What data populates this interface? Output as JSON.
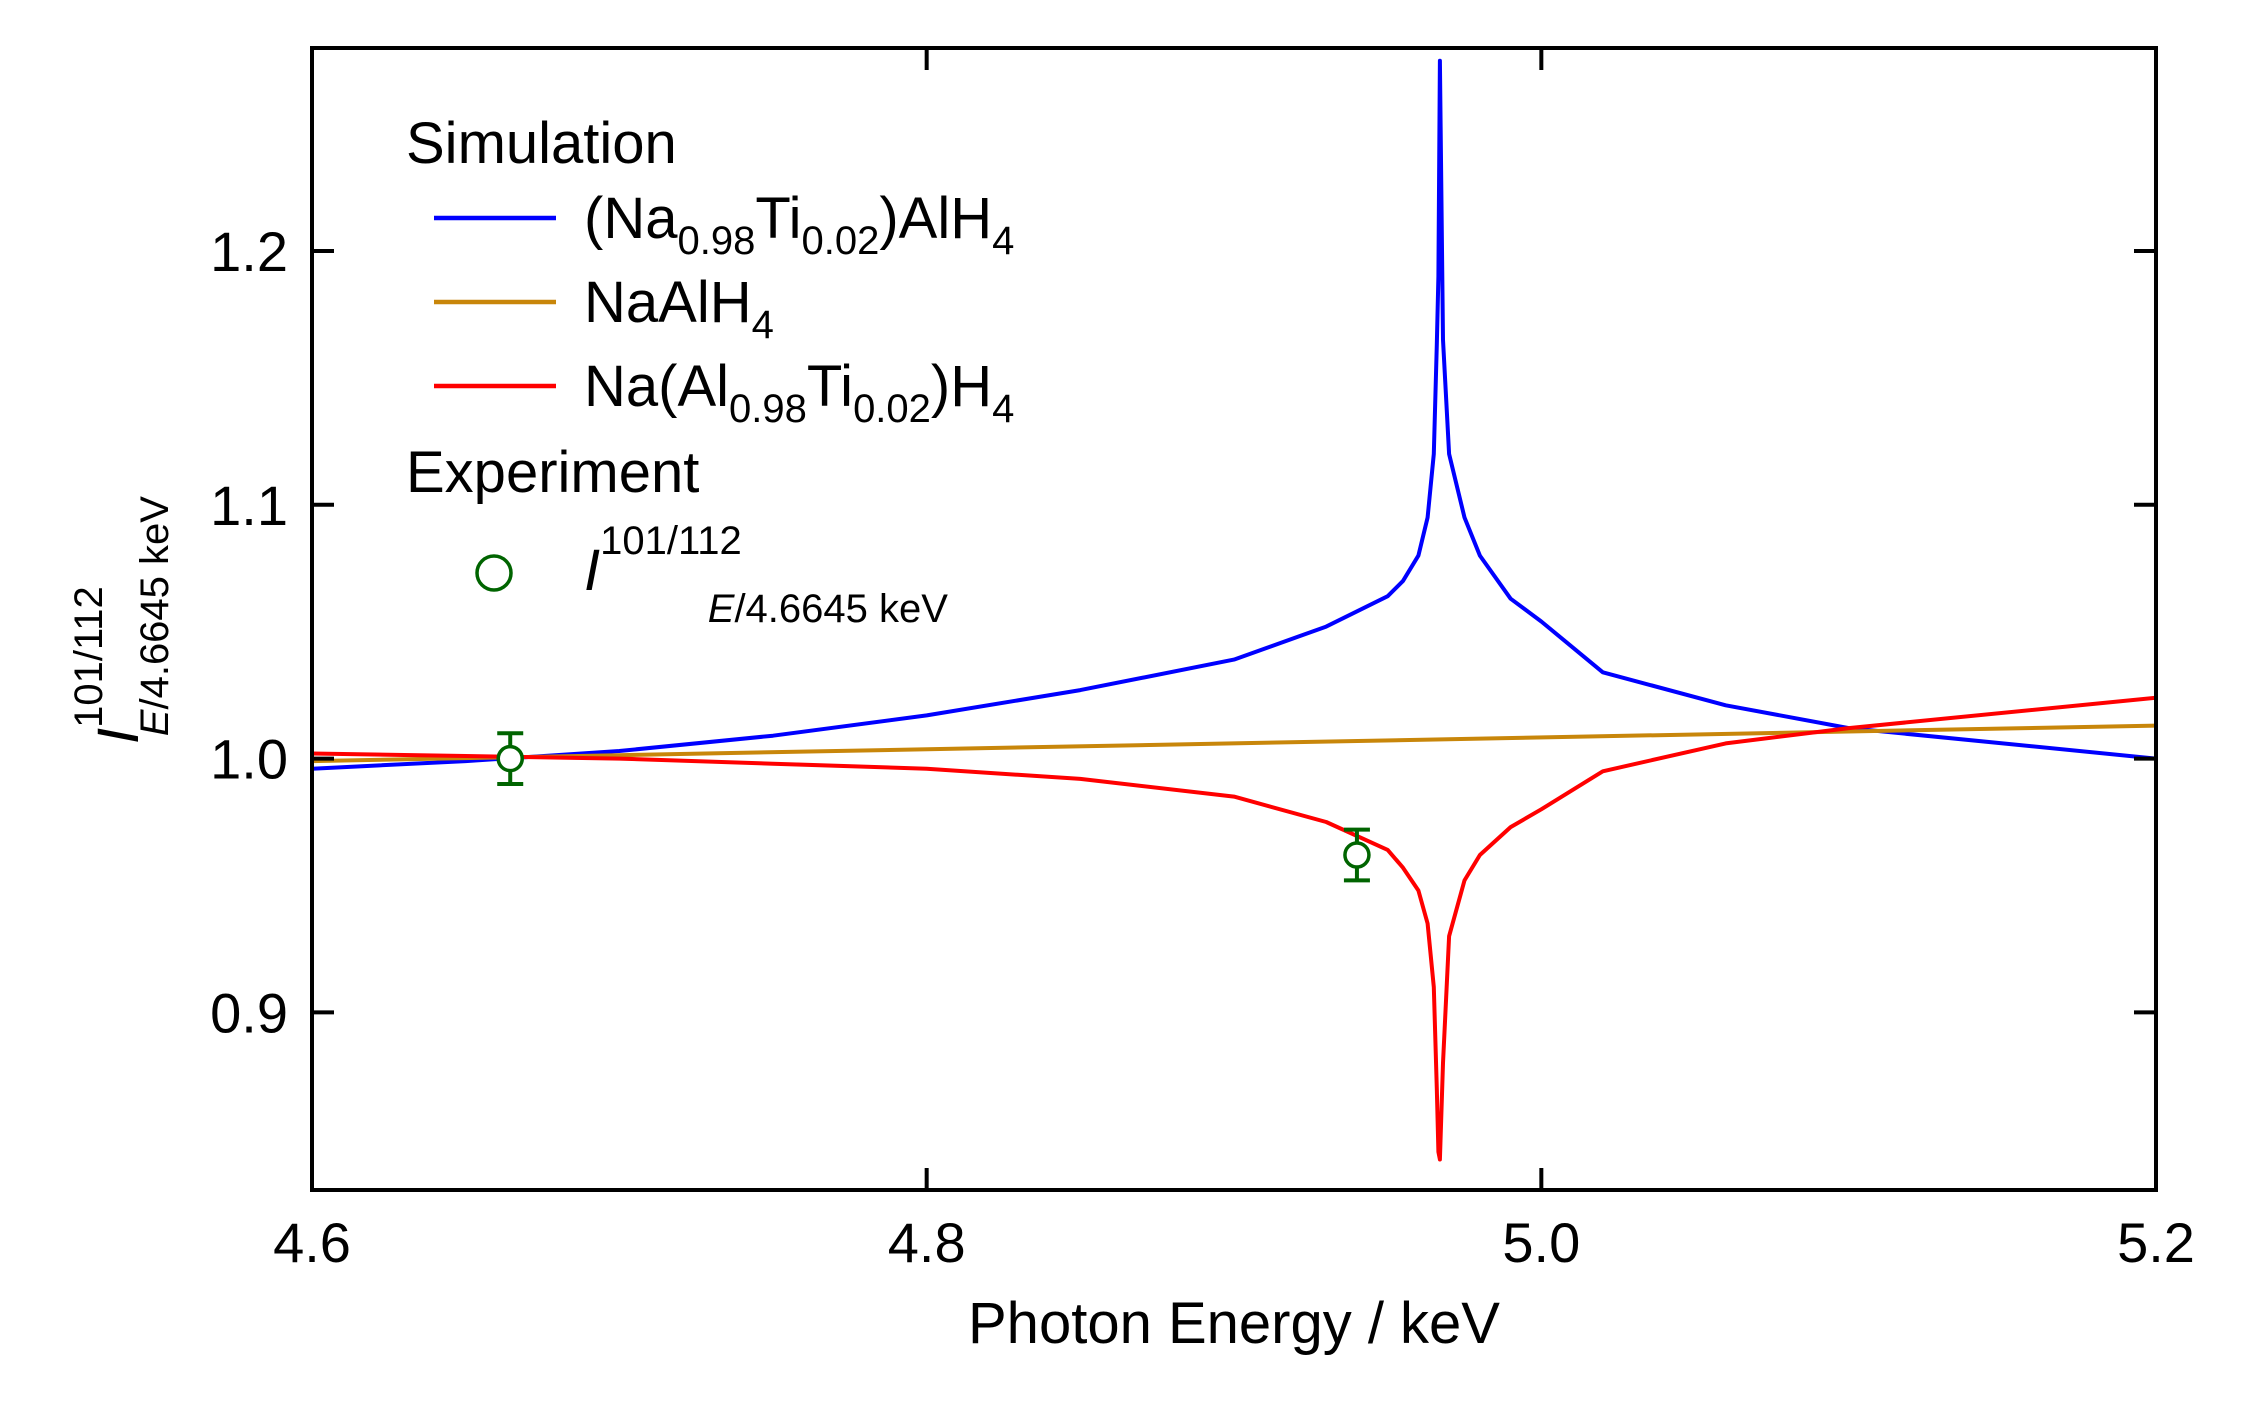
{
  "chart_data": {
    "type": "line",
    "title": "",
    "xlabel": "Photon Energy / keV",
    "ylabel": {
      "symbol": "I",
      "superscript": "101/112",
      "subscript_italic": "E",
      "subscript_rest": "/4.6645 keV"
    },
    "xlim": [
      4.6,
      5.2
    ],
    "ylim": [
      0.83,
      1.28
    ],
    "x_ticks": [
      4.6,
      4.8,
      5.0,
      5.2
    ],
    "x_tick_labels": [
      "4.6",
      "4.8",
      "5.0",
      "5.2"
    ],
    "y_ticks": [
      0.9,
      1.0,
      1.1,
      1.2
    ],
    "y_tick_labels": [
      "0.9",
      "1.0",
      "1.1",
      "1.2"
    ],
    "grid": false,
    "legend_placement": "top-left",
    "legend_groups": {
      "simulation": "Simulation",
      "experiment": "Experiment"
    },
    "series": [
      {
        "name": {
          "parts": [
            [
              "t",
              "(Na"
            ],
            [
              "s",
              "0.98"
            ],
            [
              "t",
              "Ti"
            ],
            [
              "s",
              "0.02"
            ],
            [
              "t",
              ")AlH"
            ],
            [
              "s",
              "4"
            ]
          ]
        },
        "color": "#0000ff",
        "x": [
          4.6,
          4.65,
          4.7,
          4.75,
          4.8,
          4.85,
          4.9,
          4.93,
          4.95,
          4.955,
          4.96,
          4.963,
          4.965,
          4.966,
          4.9665,
          4.967,
          4.968,
          4.97,
          4.975,
          4.98,
          4.99,
          5.0,
          5.02,
          5.06,
          5.1,
          5.2
        ],
        "y": [
          0.996,
          0.999,
          1.003,
          1.009,
          1.017,
          1.027,
          1.039,
          1.052,
          1.064,
          1.07,
          1.08,
          1.095,
          1.12,
          1.163,
          1.19,
          1.275,
          1.165,
          1.12,
          1.095,
          1.08,
          1.063,
          1.054,
          1.034,
          1.021,
          1.012,
          1.0
        ]
      },
      {
        "name": {
          "parts": [
            [
              "t",
              "NaAlH"
            ],
            [
              "s",
              "4"
            ]
          ]
        },
        "color": "#c8860a",
        "x": [
          4.6,
          5.2
        ],
        "y": [
          0.999,
          1.013
        ]
      },
      {
        "name": {
          "parts": [
            [
              "t",
              "Na(Al"
            ],
            [
              "s",
              "0.98"
            ],
            [
              "t",
              "Ti"
            ],
            [
              "s",
              "0.02"
            ],
            [
              "t",
              ")H"
            ],
            [
              "s",
              "4"
            ]
          ]
        },
        "color": "#ff0000",
        "x": [
          4.6,
          4.65,
          4.7,
          4.75,
          4.8,
          4.85,
          4.9,
          4.93,
          4.95,
          4.955,
          4.96,
          4.963,
          4.965,
          4.966,
          4.9665,
          4.967,
          4.968,
          4.97,
          4.975,
          4.98,
          4.99,
          5.0,
          5.02,
          5.06,
          5.1,
          5.2
        ],
        "y": [
          1.002,
          1.001,
          1.0,
          0.998,
          0.996,
          0.992,
          0.985,
          0.975,
          0.964,
          0.957,
          0.948,
          0.935,
          0.91,
          0.87,
          0.845,
          0.842,
          0.88,
          0.93,
          0.952,
          0.962,
          0.973,
          0.98,
          0.995,
          1.006,
          1.012,
          1.024
        ]
      }
    ],
    "experiment": {
      "name": {
        "symbol": "I",
        "superscript": "101/112",
        "subscript_italic": "E",
        "subscript_rest": "/4.6645 keV"
      },
      "color": "#006400",
      "points": [
        {
          "x": 4.6645,
          "y": 1.0,
          "yerr": 0.01
        },
        {
          "x": 4.94,
          "y": 0.962,
          "yerr": 0.01
        }
      ]
    }
  }
}
